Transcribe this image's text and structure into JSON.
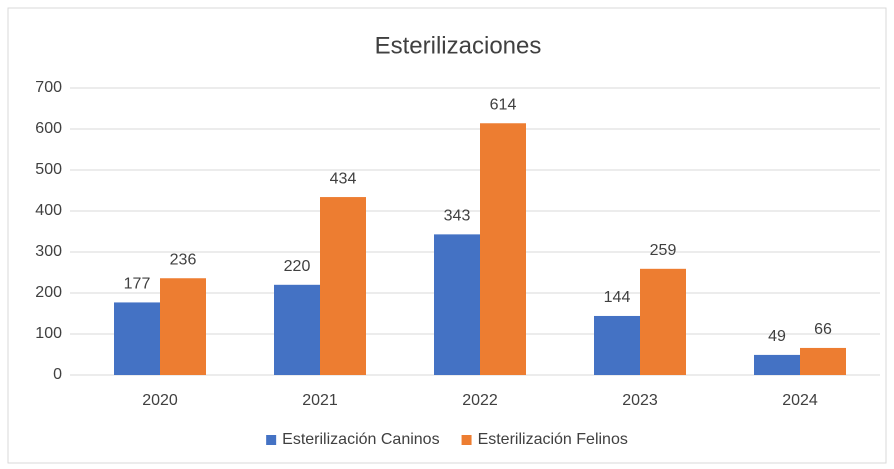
{
  "chart_data": {
    "type": "bar",
    "title": "Esterilizaciones",
    "categories": [
      "2020",
      "2021",
      "2022",
      "2023",
      "2024"
    ],
    "series": [
      {
        "name": "Esterilización Caninos",
        "color": "#4472c4",
        "values": [
          177,
          220,
          343,
          144,
          49
        ]
      },
      {
        "name": "Esterilización Felinos",
        "color": "#ed7d31",
        "values": [
          236,
          434,
          614,
          259,
          66
        ]
      }
    ],
    "ylim": [
      0,
      700
    ],
    "yticks": [
      0,
      100,
      200,
      300,
      400,
      500,
      600,
      700
    ],
    "grid": true,
    "legend": "bottom"
  }
}
